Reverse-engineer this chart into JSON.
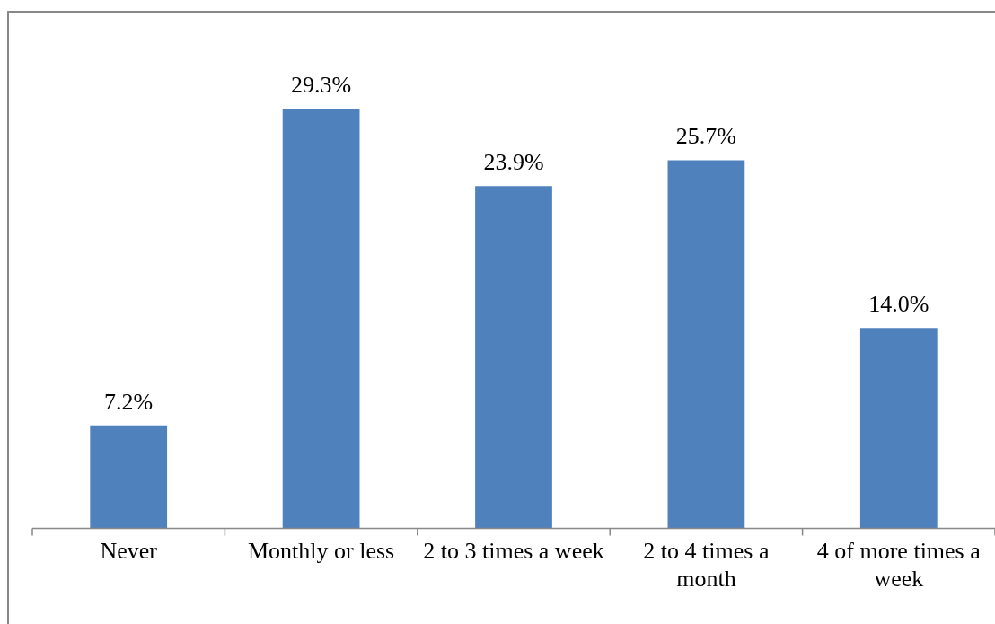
{
  "chart_data": {
    "type": "bar",
    "categories": [
      "Never",
      "Monthly or less",
      "2 to 3 times a week",
      "2 to 4 times a month",
      "4 of more times a week"
    ],
    "values": [
      7.2,
      29.3,
      23.9,
      25.7,
      14.0
    ],
    "value_labels": [
      "7.2%",
      "29.3%",
      "23.9%",
      "25.7%",
      "14.0%"
    ],
    "color": "#4f81bd",
    "tick_labels": "x",
    "grid": false,
    "legend": false
  }
}
